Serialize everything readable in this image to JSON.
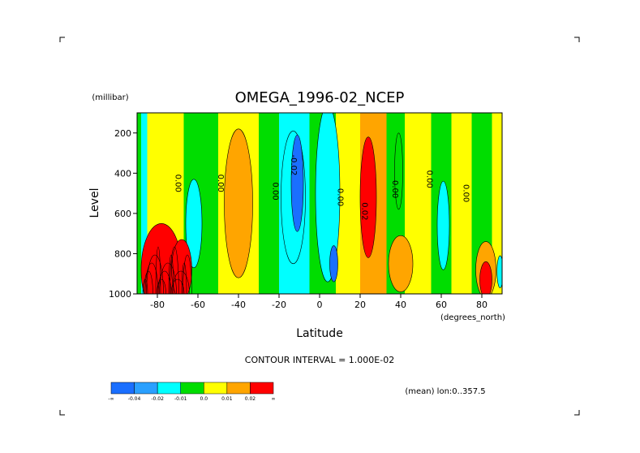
{
  "chart_data": {
    "type": "heatmap",
    "title": "OMEGA_1996-02_NCEP",
    "xlabel": "Latitude",
    "xunits": "(degrees_north)",
    "ylabel": "Level",
    "yunits": "(millibar)",
    "xlim": [
      -90,
      90
    ],
    "ylim": [
      1000,
      100
    ],
    "y_inverted": true,
    "x_ticks": [
      -80,
      -60,
      -40,
      -20,
      0,
      20,
      40,
      60,
      80
    ],
    "x_tick_labels": [
      "-80",
      "-60",
      "-40",
      "-20",
      "0",
      "20",
      "40",
      "60",
      "80"
    ],
    "y_ticks": [
      200,
      400,
      600,
      800,
      1000
    ],
    "y_tick_labels": [
      "200",
      "400",
      "600",
      "800",
      "1000"
    ],
    "contour_interval_text": "CONTOUR INTERVAL = 1.000E-02",
    "subtitle_note": "(mean) lon:0..357.5",
    "colorbar": {
      "colors": [
        "#1a6fff",
        "#2aa0ff",
        "#00ffff",
        "#00dd00",
        "#ffff00",
        "#ffa500",
        "#ff0000"
      ],
      "labels": [
        "-∞",
        "-0.04",
        "-0.02",
        "-0.01",
        "0.0",
        "0.01",
        "0.02",
        "∞"
      ]
    },
    "bands": [
      {
        "x0": -90,
        "x1": -88,
        "class": "green"
      },
      {
        "x0": -88,
        "x1": -85,
        "class": "cyan"
      },
      {
        "x0": -85,
        "x1": -80,
        "class": "yellow"
      },
      {
        "x0": -80,
        "x1": -67,
        "class": "yellow"
      },
      {
        "x0": -67,
        "x1": -60,
        "class": "green"
      },
      {
        "x0": -60,
        "x1": -50,
        "class": "green"
      },
      {
        "x0": -50,
        "x1": -30,
        "class": "yellow"
      },
      {
        "x0": -30,
        "x1": -20,
        "class": "green"
      },
      {
        "x0": -20,
        "x1": -5,
        "class": "cyan"
      },
      {
        "x0": -5,
        "x1": 8,
        "class": "green"
      },
      {
        "x0": 8,
        "x1": 20,
        "class": "yellow"
      },
      {
        "x0": 20,
        "x1": 33,
        "class": "orange"
      },
      {
        "x0": 33,
        "x1": 42,
        "class": "green"
      },
      {
        "x0": 42,
        "x1": 55,
        "class": "yellow"
      },
      {
        "x0": 55,
        "x1": 65,
        "class": "green"
      },
      {
        "x0": 65,
        "x1": 75,
        "class": "yellow"
      },
      {
        "x0": 75,
        "x1": 85,
        "class": "green"
      },
      {
        "x0": 85,
        "x1": 90,
        "class": "yellow"
      }
    ],
    "blobs": [
      {
        "cx": -40,
        "cy": 550,
        "rx": 7,
        "ry": 370,
        "class": "orange"
      },
      {
        "cx": -62,
        "cy": 650,
        "rx": 4,
        "ry": 220,
        "class": "cyan"
      },
      {
        "cx": -13,
        "cy": 520,
        "rx": 6,
        "ry": 330,
        "class": "cyan"
      },
      {
        "cx": -11,
        "cy": 450,
        "rx": 3,
        "ry": 240,
        "class": "blue"
      },
      {
        "cx": 4,
        "cy": 500,
        "rx": 6,
        "ry": 440,
        "class": "cyan"
      },
      {
        "cx": 7,
        "cy": 850,
        "rx": 2,
        "ry": 90,
        "class": "blue"
      },
      {
        "cx": 24,
        "cy": 520,
        "rx": 4,
        "ry": 300,
        "class": "red"
      },
      {
        "cx": 40,
        "cy": 850,
        "rx": 6,
        "ry": 140,
        "class": "orange"
      },
      {
        "cx": 39,
        "cy": 390,
        "rx": 2,
        "ry": 190,
        "class": "green"
      },
      {
        "cx": 61,
        "cy": 660,
        "rx": 3,
        "ry": 220,
        "class": "cyan"
      },
      {
        "cx": 82,
        "cy": 880,
        "rx": 5,
        "ry": 140,
        "class": "orange"
      },
      {
        "cx": 82,
        "cy": 930,
        "rx": 3,
        "ry": 90,
        "class": "red"
      },
      {
        "cx": 89,
        "cy": 890,
        "rx": 1.5,
        "ry": 80,
        "class": "cyan"
      },
      {
        "cx": -78,
        "cy": 880,
        "rx": 10,
        "ry": 230,
        "class": "red"
      },
      {
        "cx": -68,
        "cy": 880,
        "rx": 5,
        "ry": 150,
        "class": "red"
      }
    ],
    "contour_labels": [
      {
        "x": -71,
        "y": 450,
        "text": "0.00"
      },
      {
        "x": -50,
        "y": 450,
        "text": "0.00"
      },
      {
        "x": -23,
        "y": 490,
        "text": "0.00"
      },
      {
        "x": -14,
        "y": 360,
        "text": "-0.02"
      },
      {
        "x": 9,
        "y": 520,
        "text": "0.00"
      },
      {
        "x": 21,
        "y": 590,
        "text": "0.02"
      },
      {
        "x": 36,
        "y": 480,
        "text": "0.00"
      },
      {
        "x": 53,
        "y": 430,
        "text": "0.00"
      },
      {
        "x": 71,
        "y": 500,
        "text": "0.00"
      }
    ]
  }
}
